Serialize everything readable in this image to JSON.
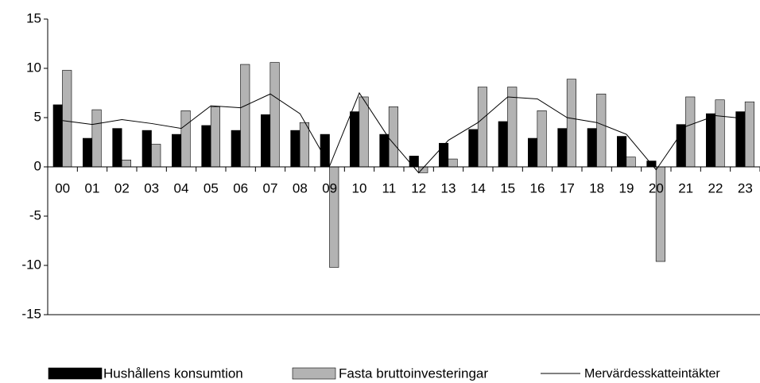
{
  "chart_data": {
    "type": "bar",
    "categories": [
      "00",
      "01",
      "02",
      "03",
      "04",
      "05",
      "06",
      "07",
      "08",
      "09",
      "10",
      "11",
      "12",
      "13",
      "14",
      "15",
      "16",
      "17",
      "18",
      "19",
      "20",
      "21",
      "22",
      "23"
    ],
    "series": [
      {
        "name": "Hushållens konsumtion",
        "type": "bar",
        "color": "#000000",
        "values": [
          6.3,
          2.9,
          3.9,
          3.7,
          3.3,
          4.2,
          3.7,
          5.3,
          3.7,
          3.3,
          5.6,
          3.3,
          1.1,
          2.4,
          3.8,
          4.6,
          2.9,
          3.9,
          3.9,
          3.1,
          0.6,
          4.3,
          5.4,
          5.6
        ]
      },
      {
        "name": "Fasta bruttoinvesteringar",
        "type": "bar",
        "color": "#b3b3b3",
        "values": [
          9.8,
          5.8,
          0.7,
          2.3,
          5.7,
          6.1,
          10.4,
          10.6,
          4.5,
          -10.2,
          7.1,
          6.1,
          -0.6,
          0.8,
          8.1,
          8.1,
          5.7,
          8.9,
          7.4,
          1.0,
          -9.6,
          7.1,
          6.8,
          6.6
        ]
      },
      {
        "name": "Mervärdesskatteintäkter",
        "type": "line",
        "color": "#000000",
        "values": [
          4.7,
          4.3,
          4.8,
          4.4,
          3.9,
          6.2,
          6.0,
          7.4,
          5.4,
          0.1,
          7.5,
          2.9,
          -0.6,
          2.7,
          4.5,
          7.1,
          6.9,
          5.0,
          4.5,
          3.3,
          -0.3,
          4.1,
          5.2,
          4.9
        ]
      }
    ],
    "ylim": [
      -15,
      15
    ],
    "yticks": [
      -15,
      -10,
      -5,
      0,
      5,
      10,
      15
    ]
  }
}
